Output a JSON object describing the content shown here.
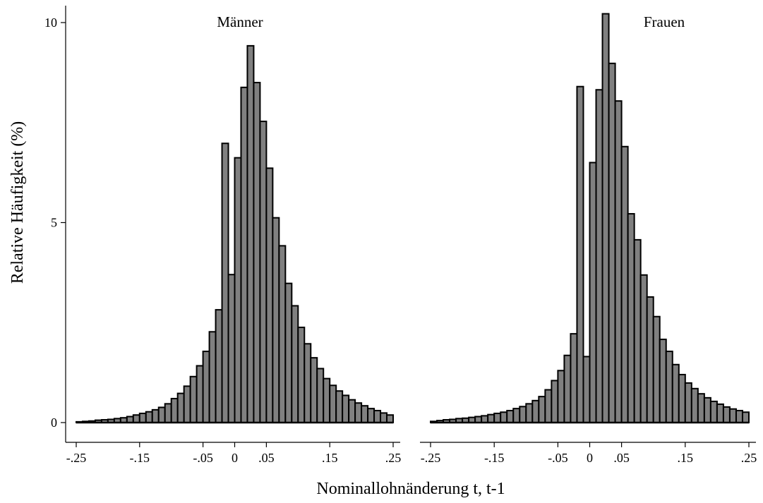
{
  "chart_data": [
    {
      "type": "bar",
      "title": "Männer",
      "ylabel": "Relative Häufigkeit (%)",
      "xlabel": "Nominallohnänderung t, t-1",
      "bin_width": 0.01,
      "xlim": [
        -0.25,
        0.25
      ],
      "ylim": [
        0,
        10
      ],
      "x_ticks": [
        -0.25,
        -0.15,
        -0.05,
        0,
        0.05,
        0.15,
        0.25
      ],
      "x_tick_labels": [
        "-.25",
        "-.15",
        "-.05",
        "0",
        ".05",
        ".15",
        ".25"
      ],
      "y_ticks": [
        0,
        5,
        10
      ],
      "y_tick_labels": [
        "0",
        "5",
        "10"
      ],
      "bins": [
        -0.25,
        -0.24,
        -0.23,
        -0.22,
        -0.21,
        -0.2,
        -0.19,
        -0.18,
        -0.17,
        -0.16,
        -0.15,
        -0.14,
        -0.13,
        -0.12,
        -0.11,
        -0.1,
        -0.09,
        -0.08,
        -0.07,
        -0.06,
        -0.05,
        -0.04,
        -0.03,
        -0.02,
        -0.01,
        0.0,
        0.01,
        0.02,
        0.03,
        0.04,
        0.05,
        0.06,
        0.07,
        0.08,
        0.09,
        0.1,
        0.11,
        0.12,
        0.13,
        0.14,
        0.15,
        0.16,
        0.17,
        0.18,
        0.19,
        0.2,
        0.21,
        0.22,
        0.23,
        0.24
      ],
      "values": [
        0.02,
        0.03,
        0.04,
        0.06,
        0.07,
        0.08,
        0.1,
        0.12,
        0.15,
        0.19,
        0.23,
        0.27,
        0.32,
        0.38,
        0.47,
        0.6,
        0.73,
        0.91,
        1.15,
        1.42,
        1.78,
        2.27,
        2.82,
        6.98,
        3.7,
        6.62,
        8.38,
        9.42,
        8.5,
        7.53,
        6.36,
        5.12,
        4.42,
        3.48,
        2.92,
        2.38,
        1.97,
        1.62,
        1.35,
        1.1,
        0.93,
        0.79,
        0.68,
        0.57,
        0.49,
        0.42,
        0.35,
        0.3,
        0.24,
        0.19
      ]
    },
    {
      "type": "bar",
      "title": "Frauen",
      "bin_width": 0.01,
      "xlim": [
        -0.25,
        0.25
      ],
      "ylim": [
        0,
        10
      ],
      "x_ticks": [
        -0.25,
        -0.15,
        -0.05,
        0,
        0.05,
        0.15,
        0.25
      ],
      "x_tick_labels": [
        "-.25",
        "-.15",
        "-.05",
        "0",
        ".05",
        ".15",
        ".25"
      ],
      "bins": [
        -0.25,
        -0.24,
        -0.23,
        -0.22,
        -0.21,
        -0.2,
        -0.19,
        -0.18,
        -0.17,
        -0.16,
        -0.15,
        -0.14,
        -0.13,
        -0.12,
        -0.11,
        -0.1,
        -0.09,
        -0.08,
        -0.07,
        -0.06,
        -0.05,
        -0.04,
        -0.03,
        -0.02,
        -0.01,
        0.0,
        0.01,
        0.02,
        0.03,
        0.04,
        0.05,
        0.06,
        0.07,
        0.08,
        0.09,
        0.1,
        0.11,
        0.12,
        0.13,
        0.14,
        0.15,
        0.16,
        0.17,
        0.18,
        0.19,
        0.2,
        0.21,
        0.22,
        0.23,
        0.24
      ],
      "values": [
        0.03,
        0.05,
        0.07,
        0.08,
        0.1,
        0.11,
        0.13,
        0.15,
        0.17,
        0.2,
        0.23,
        0.26,
        0.3,
        0.35,
        0.4,
        0.47,
        0.55,
        0.65,
        0.82,
        1.05,
        1.3,
        1.68,
        2.22,
        8.4,
        1.65,
        6.5,
        8.32,
        10.22,
        8.98,
        8.04,
        6.9,
        5.22,
        4.57,
        3.69,
        3.14,
        2.65,
        2.08,
        1.78,
        1.45,
        1.2,
        0.99,
        0.85,
        0.72,
        0.62,
        0.53,
        0.46,
        0.39,
        0.34,
        0.3,
        0.26
      ]
    }
  ]
}
